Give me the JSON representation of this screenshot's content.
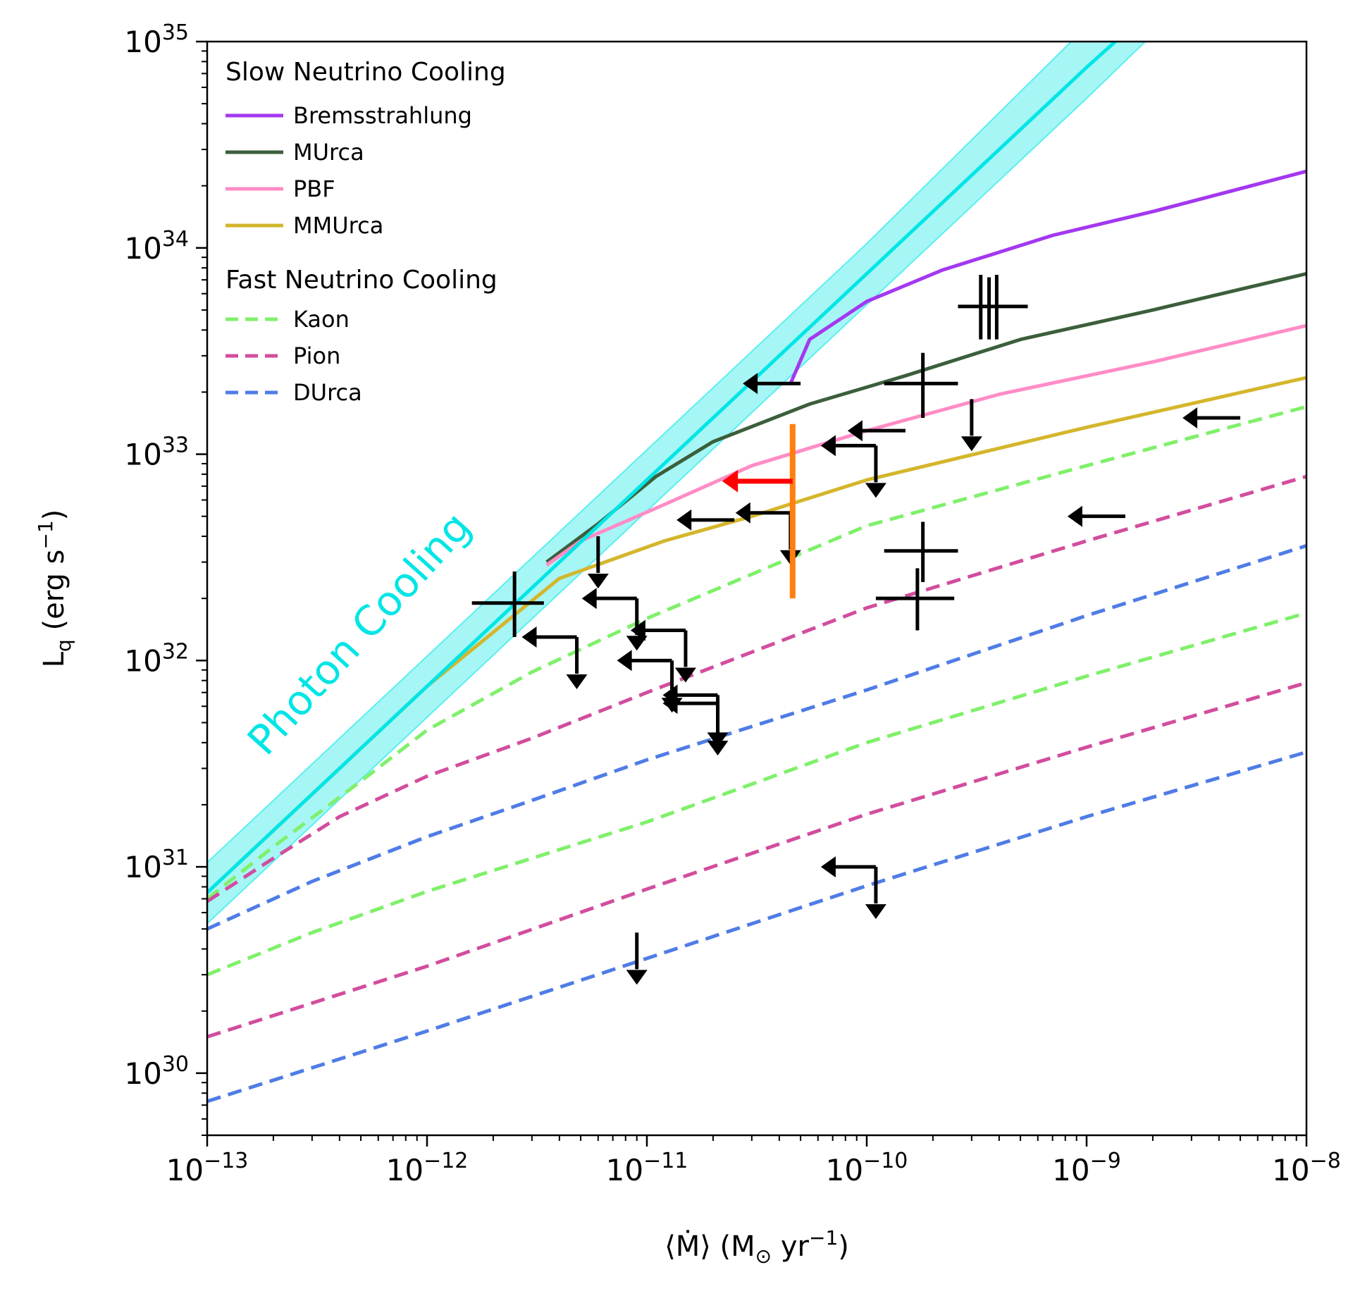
{
  "chart_data": {
    "type": "line",
    "title": "",
    "xlabel": "⟨Ṁ⟩ (M☉ yr⁻¹)",
    "ylabel": "Lq (erg s⁻¹)",
    "xscale": "log",
    "yscale": "log",
    "xlim": [
      1e-13,
      1e-08
    ],
    "ylim": [
      5e+29,
      1e+35
    ],
    "x_ticks": [
      {
        "exp": -13,
        "base": "10",
        "sup": "−13"
      },
      {
        "exp": -12,
        "base": "10",
        "sup": "−12"
      },
      {
        "exp": -11,
        "base": "10",
        "sup": "−11"
      },
      {
        "exp": -10,
        "base": "10",
        "sup": "−10"
      },
      {
        "exp": -9,
        "base": "10",
        "sup": "−9"
      },
      {
        "exp": -8,
        "base": "10",
        "sup": "−8"
      }
    ],
    "y_ticks": [
      {
        "exp": 30,
        "base": "10",
        "sup": "30"
      },
      {
        "exp": 31,
        "base": "10",
        "sup": "31"
      },
      {
        "exp": 32,
        "base": "10",
        "sup": "32"
      },
      {
        "exp": 33,
        "base": "10",
        "sup": "33"
      },
      {
        "exp": 34,
        "base": "10",
        "sup": "34"
      },
      {
        "exp": 35,
        "base": "10",
        "sup": "35"
      }
    ],
    "axis_labels": {
      "x": {
        "pre": "⟨Ṁ⟩ (M",
        "sub": "⊙",
        "mid": " yr",
        "sup": "−1",
        "post": ")"
      },
      "y": {
        "pre": "L",
        "sub": "q",
        "mid": " (erg s",
        "sup": "−1",
        "post": ")"
      }
    },
    "annotation": {
      "text": "Photon Cooling",
      "color": "#00e5e5"
    },
    "legend": {
      "slow_heading": "Slow Neutrino Cooling",
      "fast_heading": "Fast Neutrino Cooling",
      "slow_entries": [
        {
          "name": "Bremsstrahlung",
          "color": "#a338f0",
          "dashed": false
        },
        {
          "name": "MUrca",
          "color": "#3b5f3b",
          "dashed": false
        },
        {
          "name": "PBF",
          "color": "#ff8cc6",
          "dashed": false
        },
        {
          "name": "MMUrca",
          "color": "#d4b62c",
          "dashed": false
        }
      ],
      "fast_entries": [
        {
          "name": "Kaon",
          "color": "#7ff06a",
          "dashed": true
        },
        {
          "name": "Pion",
          "color": "#d24d9e",
          "dashed": true
        },
        {
          "name": "DUrca",
          "color": "#4f7ce6",
          "dashed": true
        }
      ]
    },
    "photon_band": {
      "color": "#00e5e5",
      "center": [
        [
          1e-13,
          7.5e+30
        ],
        [
          1e-12,
          7.5e+31
        ],
        [
          1e-11,
          7.5e+32
        ],
        [
          1e-10,
          7.5e+33
        ],
        [
          1e-09,
          7.5e+34
        ],
        [
          1.35e-09,
          1e+35
        ]
      ],
      "upper": [
        [
          1e-13,
          1.05e+31
        ],
        [
          1e-12,
          1.05e+32
        ],
        [
          1e-11,
          1.05e+33
        ],
        [
          1e-10,
          1.05e+34
        ],
        [
          8.5e-10,
          1e+35
        ]
      ],
      "lower": [
        [
          1e-13,
          5.3e+30
        ],
        [
          1e-12,
          5.3e+31
        ],
        [
          1e-11,
          5.3e+32
        ],
        [
          1e-10,
          5.3e+33
        ],
        [
          1e-09,
          5.3e+34
        ],
        [
          1.85e-09,
          1e+35
        ]
      ]
    },
    "series": [
      {
        "name": "Bremsstrahlung",
        "color": "#a338f0",
        "dashed": false,
        "points": [
          [
            4.5e-11,
            2.2e+33
          ],
          [
            5.5e-11,
            3.6e+33
          ],
          [
            1e-10,
            5.5e+33
          ],
          [
            2.2e-10,
            7.8e+33
          ],
          [
            7e-10,
            1.15e+34
          ],
          [
            2e-09,
            1.5e+34
          ],
          [
            1e-08,
            2.35e+34
          ]
        ]
      },
      {
        "name": "MUrca",
        "color": "#3b5f3b",
        "dashed": false,
        "points": [
          [
            3.5e-12,
            3e+32
          ],
          [
            6e-12,
            4.6e+32
          ],
          [
            1.1e-11,
            7.8e+32
          ],
          [
            2e-11,
            1.15e+33
          ],
          [
            5.5e-11,
            1.75e+33
          ],
          [
            1.5e-10,
            2.4e+33
          ],
          [
            5e-10,
            3.6e+33
          ],
          [
            2e-09,
            5e+33
          ],
          [
            1e-08,
            7.5e+33
          ]
        ]
      },
      {
        "name": "PBF",
        "color": "#ff8cc6",
        "dashed": false,
        "points": [
          [
            3.5e-12,
            2.9e+32
          ],
          [
            5e-12,
            3.8e+32
          ],
          [
            1.2e-11,
            5.7e+32
          ],
          [
            3e-11,
            8.8e+32
          ],
          [
            1e-10,
            1.3e+33
          ],
          [
            4e-10,
            1.95e+33
          ],
          [
            2e-09,
            2.8e+33
          ],
          [
            1e-08,
            4.2e+33
          ]
        ]
      },
      {
        "name": "MMUrca",
        "color": "#d4b62c",
        "dashed": false,
        "points": [
          [
            1e-13,
            7.5e+30
          ],
          [
            1e-12,
            7.5e+31
          ],
          [
            4e-12,
            2.5e+32
          ],
          [
            1.2e-11,
            3.8e+32
          ],
          [
            3e-11,
            5e+32
          ],
          [
            1e-10,
            7.5e+32
          ],
          [
            1e-09,
            1.35e+33
          ],
          [
            1e-08,
            2.35e+33
          ]
        ]
      },
      {
        "name": "Kaon (upper)",
        "color": "#7ff06a",
        "dashed": true,
        "points": [
          [
            1e-13,
            7e+30
          ],
          [
            2e-13,
            1.25e+31
          ],
          [
            5e-13,
            2.6e+31
          ],
          [
            1e-12,
            4.6e+31
          ],
          [
            3e-12,
            8.8e+31
          ],
          [
            1e-11,
            1.6e+32
          ],
          [
            1e-10,
            4.5e+32
          ],
          [
            1e-09,
            8.8e+32
          ],
          [
            1e-08,
            1.7e+33
          ]
        ]
      },
      {
        "name": "Pion (upper)",
        "color": "#d24d9e",
        "dashed": true,
        "points": [
          [
            1e-13,
            6.8e+30
          ],
          [
            2e-13,
            1.1e+31
          ],
          [
            4e-13,
            1.75e+31
          ],
          [
            1e-12,
            2.75e+31
          ],
          [
            3e-12,
            4.2e+31
          ],
          [
            1e-11,
            7e+31
          ],
          [
            1e-10,
            1.8e+32
          ],
          [
            1e-09,
            3.8e+32
          ],
          [
            1e-08,
            7.8e+32
          ]
        ]
      },
      {
        "name": "DUrca (upper)",
        "color": "#4f7ce6",
        "dashed": true,
        "points": [
          [
            1e-13,
            5e+30
          ],
          [
            3e-13,
            8.5e+30
          ],
          [
            1e-12,
            1.4e+31
          ],
          [
            3e-12,
            2.1e+31
          ],
          [
            1e-11,
            3.3e+31
          ],
          [
            1e-10,
            7.2e+31
          ],
          [
            1e-09,
            1.65e+32
          ],
          [
            1e-08,
            3.6e+32
          ]
        ]
      },
      {
        "name": "Kaon (lower)",
        "color": "#7ff06a",
        "dashed": true,
        "points": [
          [
            1e-13,
            3e+30
          ],
          [
            3e-13,
            4.8e+30
          ],
          [
            1e-12,
            7.6e+30
          ],
          [
            1e-11,
            1.65e+31
          ],
          [
            1e-10,
            4e+31
          ],
          [
            1e-09,
            8.4e+31
          ],
          [
            1e-08,
            1.7e+32
          ]
        ]
      },
      {
        "name": "Pion (lower)",
        "color": "#d24d9e",
        "dashed": true,
        "points": [
          [
            1e-13,
            1.5e+30
          ],
          [
            1e-12,
            3.3e+30
          ],
          [
            1e-11,
            7.8e+30
          ],
          [
            1e-10,
            1.8e+31
          ],
          [
            1e-09,
            3.8e+31
          ],
          [
            1e-08,
            7.8e+31
          ]
        ]
      },
      {
        "name": "DUrca (lower)",
        "color": "#4f7ce6",
        "dashed": true,
        "points": [
          [
            1e-13,
            7.3e+29
          ],
          [
            1e-12,
            1.6e+30
          ],
          [
            1e-11,
            3.6e+30
          ],
          [
            1e-10,
            8.1e+30
          ],
          [
            1e-09,
            1.75e+31
          ],
          [
            1e-08,
            3.6e+31
          ]
        ]
      }
    ],
    "sources": {
      "crosses": [
        {
          "x": 2.5e-12,
          "y": 1.9e+32,
          "x_lo": 1.6e-12,
          "x_hi": 3.4e-12,
          "y_lo": 1.3e+32,
          "y_hi": 2.7e+32
        },
        {
          "x": 1.8e-10,
          "y": 2.2e+33,
          "x_lo": 1.2e-10,
          "x_hi": 2.6e-10,
          "y_lo": 1.5e+33,
          "y_hi": 3.1e+33
        },
        {
          "x": 3.6e-10,
          "y": 5.2e+33,
          "x_lo": 2.6e-10,
          "x_hi": 5.4e-10,
          "y_lo": 3.6e+33,
          "y_hi": 7.2e+33
        },
        {
          "x": 1.8e-10,
          "y": 3.4e+32,
          "x_lo": 1.2e-10,
          "x_hi": 2.6e-10,
          "y_lo": 2.4e+32,
          "y_hi": 4.7e+32
        },
        {
          "x": 1.7e-10,
          "y": 2e+32,
          "x_lo": 1.1e-10,
          "x_hi": 2.5e-10,
          "y_lo": 1.4e+32,
          "y_hi": 2.8e+32
        }
      ],
      "double_bars": [
        {
          "x1": 3.3e-10,
          "x2": 3.9e-10,
          "y_lo": 3.6e+33,
          "y_hi": 7.4e+33
        }
      ],
      "x_upper_limits": [
        {
          "x": 5e-11,
          "y": 2.2e+33
        },
        {
          "x": 1.5e-10,
          "y": 1.3e+33
        },
        {
          "x": 5e-09,
          "y": 1.5e+33
        },
        {
          "x": 1.5e-09,
          "y": 5e+32
        },
        {
          "x": 2.5e-11,
          "y": 4.8e+32
        }
      ],
      "y_upper_limits": [
        {
          "x": 3e-10,
          "y": 1.85e+33
        },
        {
          "x": 6e-12,
          "y": 4e+32
        },
        {
          "x": 9e-12,
          "y": 4.8e+30
        }
      ],
      "corner_limits": [
        {
          "x": 9e-12,
          "y": 2e+32
        },
        {
          "x": 4.8e-12,
          "y": 1.3e+32
        },
        {
          "x": 1.5e-11,
          "y": 1.4e+32
        },
        {
          "x": 1.3e-11,
          "y": 1e+32
        },
        {
          "x": 2.1e-11,
          "y": 6.8e+31
        },
        {
          "x": 2.1e-11,
          "y": 6.2e+31
        },
        {
          "x": 1.1e-10,
          "y": 1.1e+33
        },
        {
          "x": 4.5e-11,
          "y": 5.2e+32
        },
        {
          "x": 1.1e-10,
          "y": 1e+31
        }
      ],
      "highlighted": {
        "x": 4.6e-11,
        "y_lo": 2e+32,
        "y_hi": 1.4e+33,
        "y_mark": 7.4e+32,
        "x_arrow_to": 2.2e-11,
        "bar_color": "#ff7f0e",
        "arrow_color": "#ff0000"
      }
    }
  }
}
